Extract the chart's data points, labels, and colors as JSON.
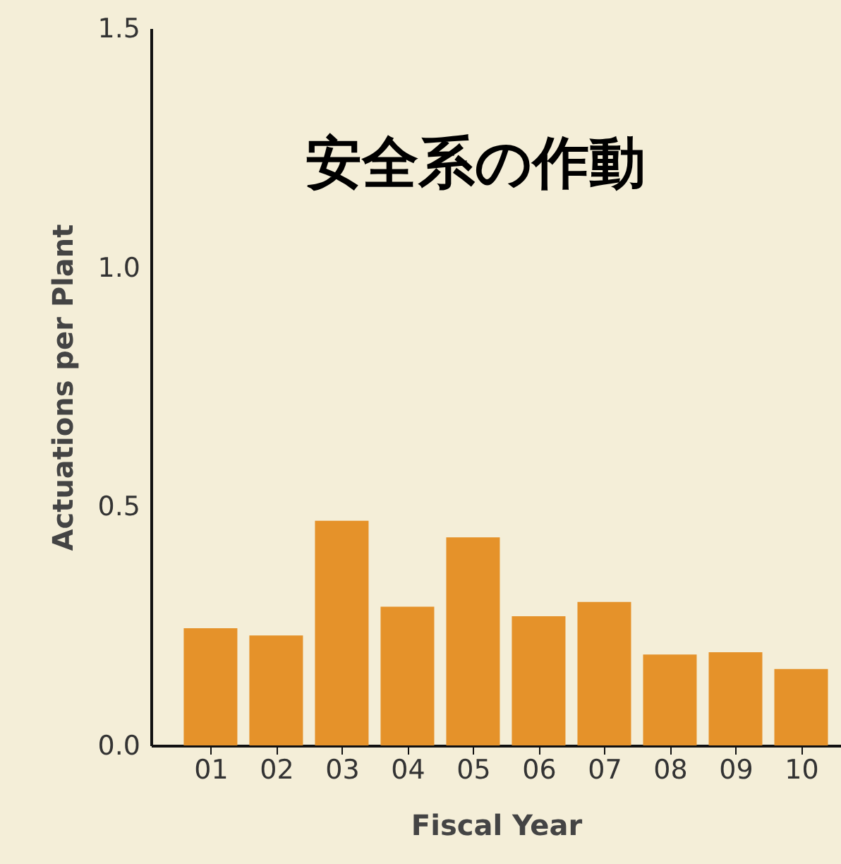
{
  "chart_data": {
    "type": "bar",
    "title": "安全系の作動",
    "xlabel": "Fiscal Year",
    "ylabel": "Actuations per Plant",
    "categories": [
      "01",
      "02",
      "03",
      "04",
      "05",
      "06",
      "07",
      "08",
      "09",
      "10"
    ],
    "values": [
      0.245,
      0.23,
      0.47,
      0.29,
      0.435,
      0.27,
      0.3,
      0.19,
      0.195,
      0.16
    ],
    "color": "#e5922a",
    "ylim": [
      0,
      1.5
    ],
    "yticks": [
      {
        "value": 0,
        "label": "0.0"
      },
      {
        "value": 0.5,
        "label": "0.5"
      },
      {
        "value": 1,
        "label": "1.0"
      },
      {
        "value": 1.5,
        "label": "1.5"
      }
    ],
    "grid": false
  }
}
